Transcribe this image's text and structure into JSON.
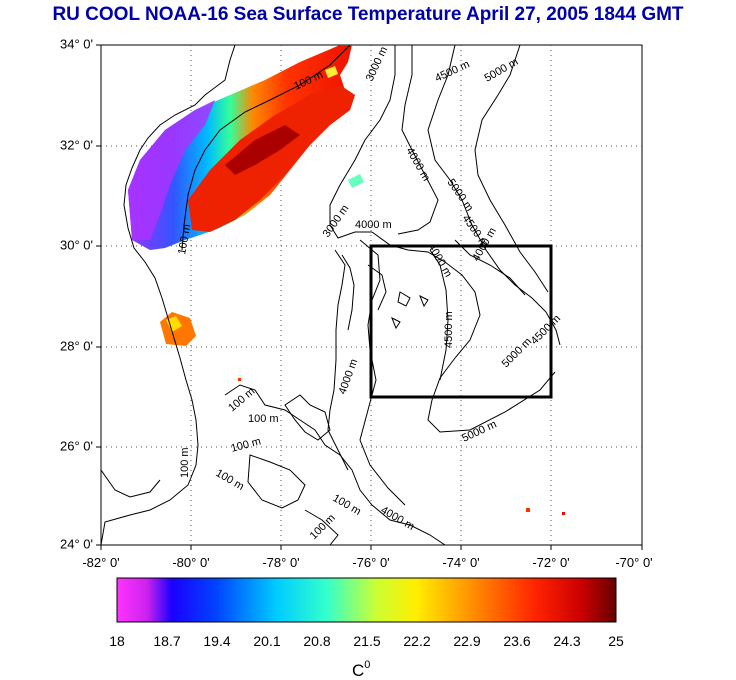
{
  "title": "RU COOL  NOAA-16 Sea Surface Temperature April 27, 2005 1844 GMT",
  "map": {
    "lat_labels": [
      "34° 0'",
      "32° 0'",
      "30° 0'",
      "28° 0'",
      "26° 0'",
      "24° 0'"
    ],
    "lon_labels": [
      "-82° 0'",
      "-80° 0'",
      "-78° 0'",
      "-76° 0'",
      "-74° 0'",
      "-72° 0'",
      "-70° 0'"
    ],
    "lat_range": [
      24,
      34
    ],
    "lon_range": [
      -82,
      -70
    ],
    "grid": "dotted",
    "study_box": {
      "lon": [
        -76,
        -72
      ],
      "lat": [
        27,
        30
      ]
    },
    "contour_labels": [
      "100 m",
      "3000 m",
      "4500 m",
      "5000 m",
      "100 m",
      "4000 m",
      "3000 m",
      "4000 m",
      "5000 m",
      "4500 m",
      "4000 m",
      "4000 m",
      "4500 m",
      "5000 m",
      "4500 m",
      "5000 m",
      "100 m",
      "100 m",
      "100 m",
      "100 m",
      "100 m",
      "100 m",
      "4000 m",
      "4000 m",
      "100 m"
    ]
  },
  "colorbar": {
    "ticks": [
      "18",
      "18.7",
      "19.4",
      "20.1",
      "20.8",
      "21.5",
      "22.2",
      "22.9",
      "23.6",
      "24.3",
      "25"
    ],
    "unit": "C",
    "unit_sup": "0",
    "colors": [
      "#ff33ff",
      "#0000ff",
      "#00aaff",
      "#00ffff",
      "#66ff66",
      "#ffff00",
      "#ffaa00",
      "#ff4400",
      "#cc0000",
      "#660000"
    ]
  }
}
